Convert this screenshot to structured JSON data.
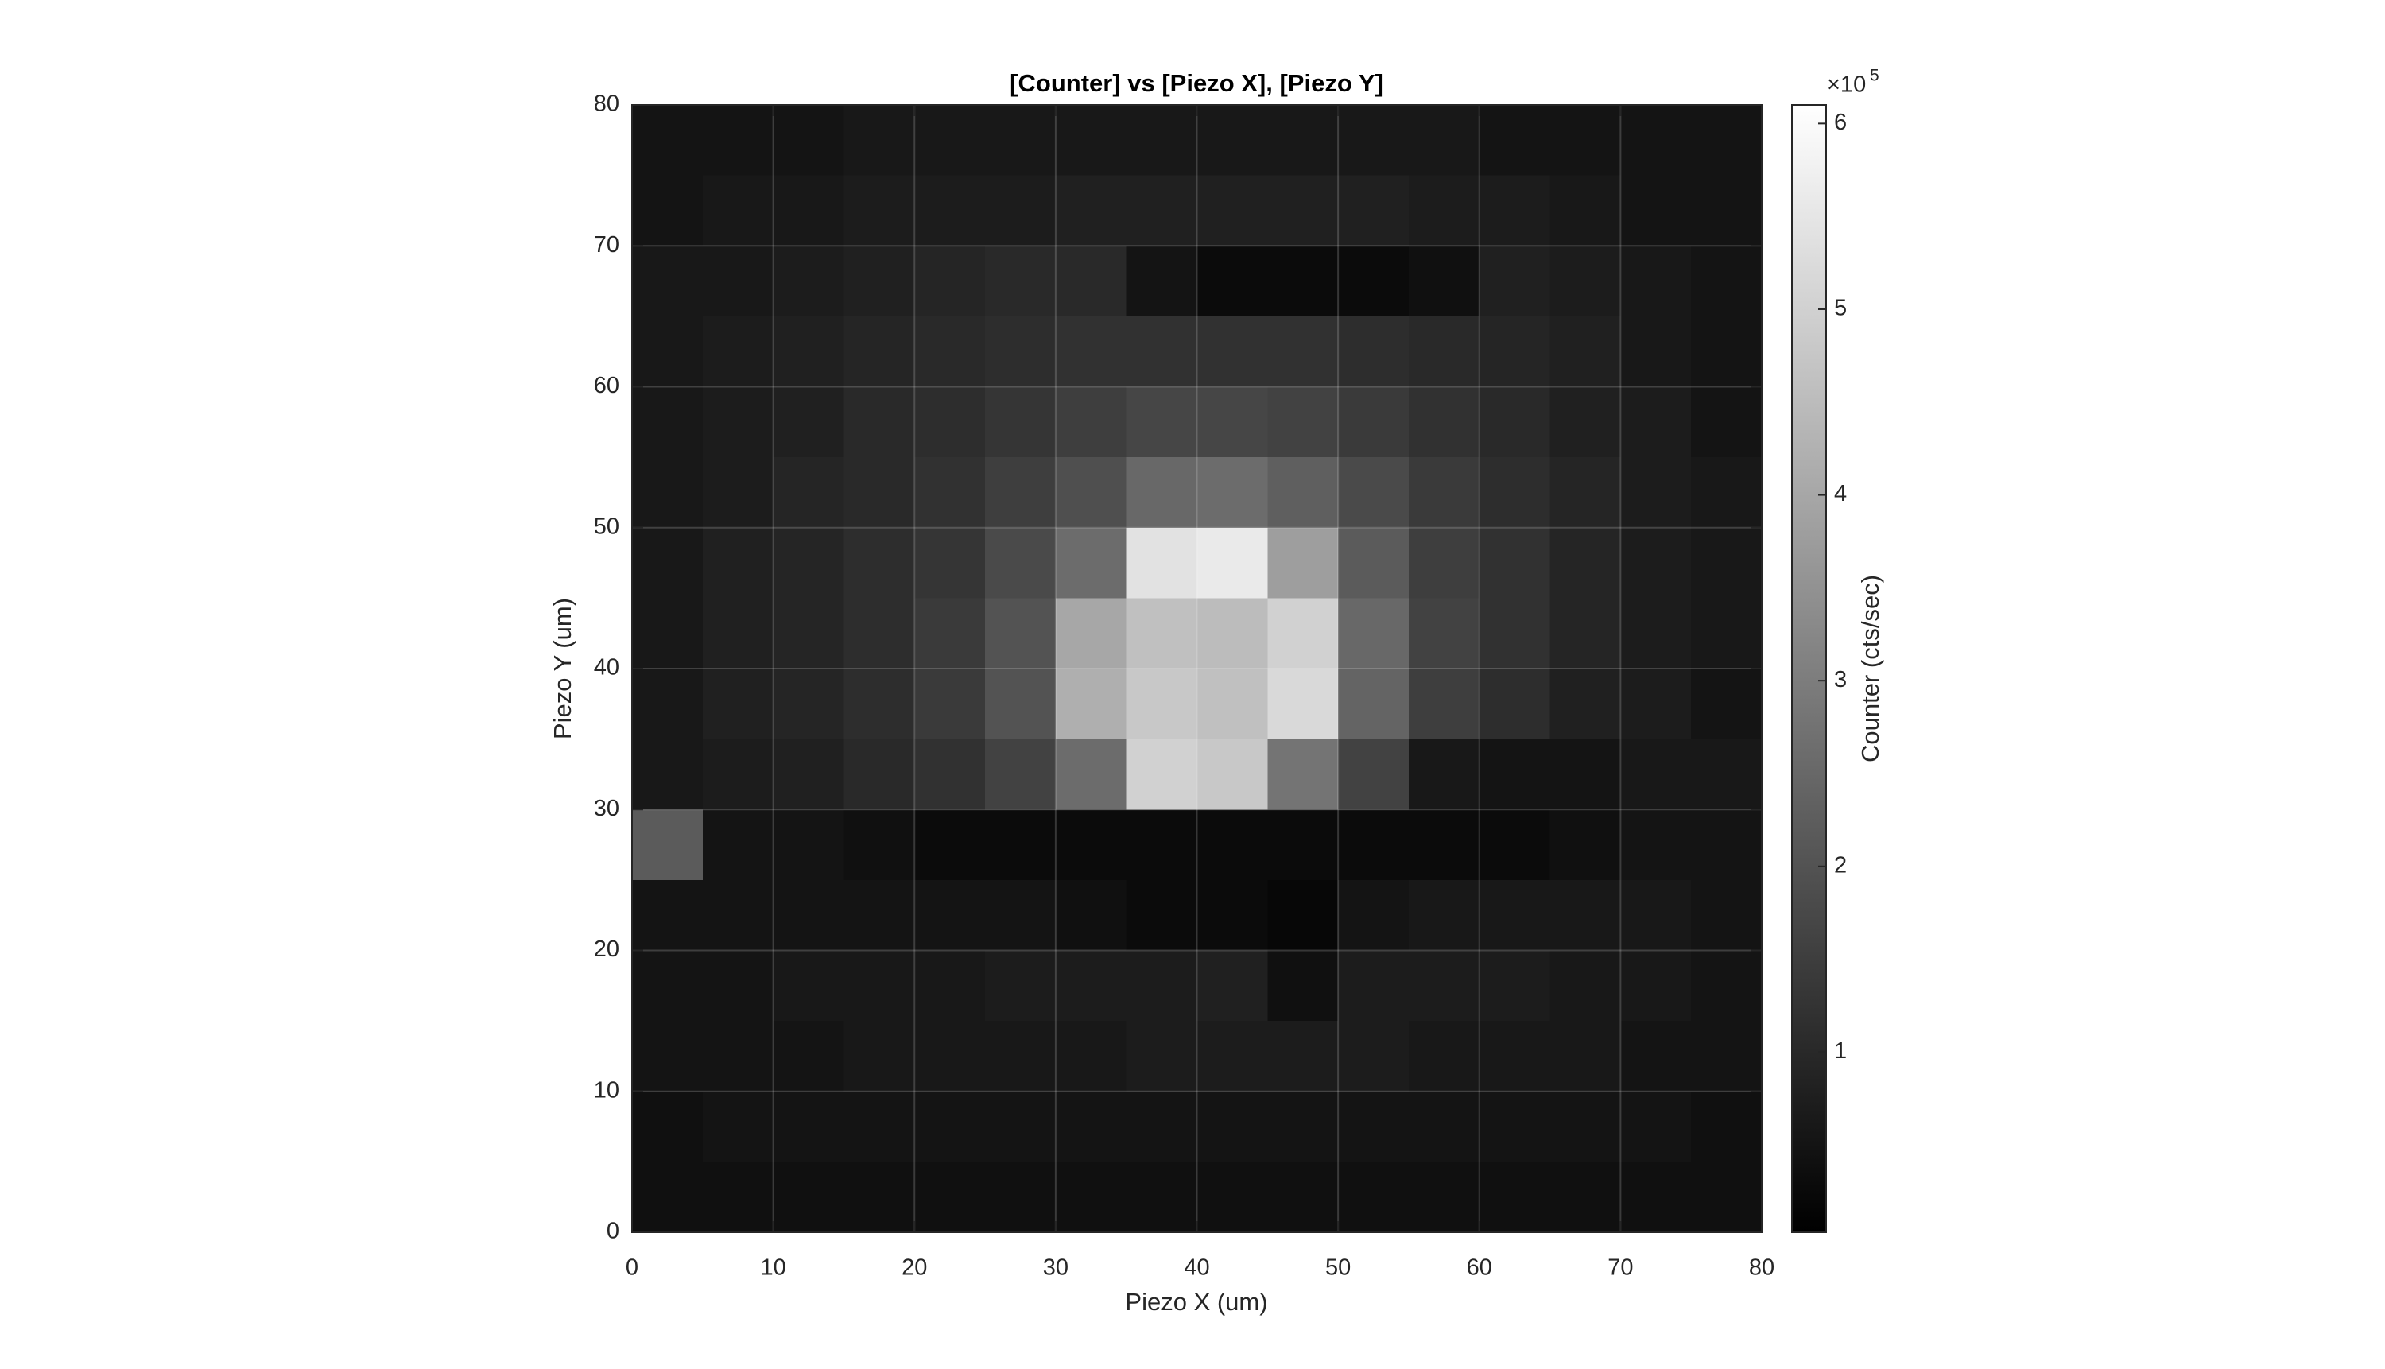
{
  "chart_data": {
    "type": "heatmap",
    "title": "[Counter] vs [Piezo X], [Piezo Y]",
    "x_label": "Piezo X (um)",
    "y_label": "Piezo Y (um)",
    "colorbar_label": "Counter (cts/sec)",
    "colorbar_multiplier": "×10",
    "colorbar_exponent": "5",
    "colormap": "gray",
    "grid": true,
    "xlim": [
      0,
      80
    ],
    "ylim": [
      0,
      80
    ],
    "xticks": [
      0,
      10,
      20,
      30,
      40,
      50,
      60,
      70,
      80
    ],
    "yticks": [
      0,
      10,
      20,
      30,
      40,
      50,
      60,
      70,
      80
    ],
    "clim": [
      0.03,
      6.1
    ],
    "cticks": [
      1,
      2,
      3,
      4,
      5,
      6
    ],
    "x": [
      2.5,
      7.5,
      12.5,
      17.5,
      22.5,
      27.5,
      32.5,
      37.5,
      42.5,
      47.5,
      52.5,
      57.5,
      62.5,
      67.5,
      72.5,
      77.5
    ],
    "y": [
      77.5,
      72.5,
      67.5,
      62.5,
      57.5,
      52.5,
      47.5,
      42.5,
      37.5,
      32.5,
      27.5,
      22.5,
      17.5,
      12.5,
      7.5,
      2.5
    ],
    "values": [
      [
        0.5,
        0.5,
        0.5,
        0.6,
        0.6,
        0.6,
        0.6,
        0.6,
        0.6,
        0.6,
        0.6,
        0.6,
        0.5,
        0.5,
        0.5,
        0.5
      ],
      [
        0.5,
        0.6,
        0.6,
        0.7,
        0.7,
        0.7,
        0.8,
        0.8,
        0.8,
        0.8,
        0.8,
        0.7,
        0.7,
        0.6,
        0.5,
        0.5
      ],
      [
        0.6,
        0.6,
        0.7,
        0.8,
        0.9,
        1.0,
        1.0,
        0.5,
        0.3,
        0.3,
        0.3,
        0.4,
        0.8,
        0.7,
        0.6,
        0.5
      ],
      [
        0.6,
        0.7,
        0.8,
        0.9,
        1.0,
        1.1,
        1.2,
        1.2,
        1.2,
        1.2,
        1.1,
        1.0,
        0.9,
        0.8,
        0.6,
        0.5
      ],
      [
        0.6,
        0.7,
        0.8,
        1.0,
        1.1,
        1.3,
        1.5,
        1.7,
        1.7,
        1.6,
        1.4,
        1.2,
        1.0,
        0.8,
        0.7,
        0.5
      ],
      [
        0.6,
        0.7,
        0.9,
        1.0,
        1.2,
        1.5,
        1.9,
        2.5,
        2.6,
        2.3,
        1.8,
        1.4,
        1.1,
        0.9,
        0.7,
        0.6
      ],
      [
        0.6,
        0.8,
        0.9,
        1.1,
        1.3,
        1.8,
        2.6,
        5.4,
        5.6,
        3.8,
        2.2,
        1.5,
        1.2,
        0.9,
        0.7,
        0.6
      ],
      [
        0.6,
        0.8,
        0.9,
        1.1,
        1.4,
        2.0,
        4.0,
        4.6,
        4.5,
        5.0,
        2.5,
        1.6,
        1.2,
        0.9,
        0.7,
        0.6
      ],
      [
        0.6,
        0.8,
        0.9,
        1.1,
        1.4,
        2.0,
        4.2,
        4.8,
        4.6,
        5.2,
        2.4,
        1.5,
        1.1,
        0.8,
        0.7,
        0.5
      ],
      [
        0.6,
        0.7,
        0.8,
        1.0,
        1.2,
        1.6,
        2.6,
        5.0,
        4.8,
        2.8,
        1.6,
        0.6,
        0.5,
        0.5,
        0.6,
        0.6
      ],
      [
        2.2,
        0.5,
        0.5,
        0.4,
        0.3,
        0.3,
        0.3,
        0.3,
        0.3,
        0.3,
        0.3,
        0.3,
        0.3,
        0.4,
        0.5,
        0.5
      ],
      [
        0.5,
        0.5,
        0.5,
        0.5,
        0.5,
        0.5,
        0.4,
        0.3,
        0.3,
        0.2,
        0.5,
        0.6,
        0.6,
        0.6,
        0.6,
        0.5
      ],
      [
        0.5,
        0.5,
        0.6,
        0.6,
        0.6,
        0.7,
        0.7,
        0.7,
        0.8,
        0.4,
        0.7,
        0.7,
        0.7,
        0.6,
        0.6,
        0.5
      ],
      [
        0.5,
        0.5,
        0.5,
        0.6,
        0.6,
        0.6,
        0.6,
        0.7,
        0.7,
        0.7,
        0.7,
        0.6,
        0.6,
        0.6,
        0.5,
        0.5
      ],
      [
        0.4,
        0.5,
        0.5,
        0.5,
        0.5,
        0.5,
        0.5,
        0.5,
        0.5,
        0.5,
        0.5,
        0.5,
        0.5,
        0.5,
        0.5,
        0.4
      ],
      [
        0.4,
        0.4,
        0.4,
        0.4,
        0.4,
        0.4,
        0.4,
        0.4,
        0.4,
        0.4,
        0.4,
        0.4,
        0.4,
        0.4,
        0.4,
        0.4
      ]
    ]
  }
}
